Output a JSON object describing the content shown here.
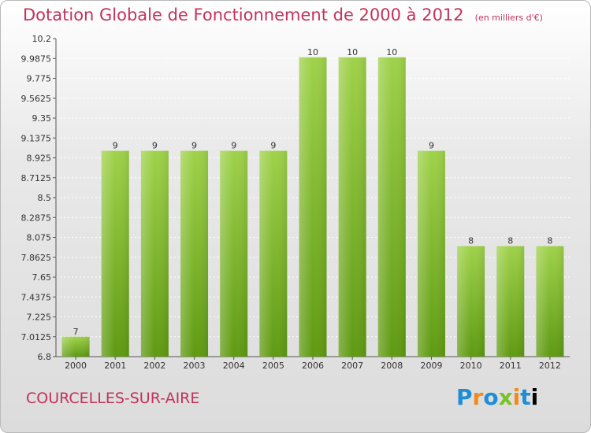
{
  "header": {
    "title": "Dotation Globale de Fonctionnement de 2000 à 2012",
    "unit": "(en milliers d'€)"
  },
  "footer": {
    "commune": "COURCELLES-SUR-AIRE",
    "logo": "Proxiti"
  },
  "colors": {
    "bar_light": "#9fd24a",
    "bar_dark": "#5f9a12",
    "title": "#c4325a"
  },
  "chart_data": {
    "type": "bar",
    "title": "Dotation Globale de Fonctionnement de 2000 à 2012",
    "xlabel": "",
    "ylabel": "",
    "categories": [
      "2000",
      "2001",
      "2002",
      "2003",
      "2004",
      "2005",
      "2006",
      "2007",
      "2008",
      "2009",
      "2010",
      "2011",
      "2012"
    ],
    "values": [
      7,
      9,
      9,
      9,
      9,
      9,
      10,
      10,
      10,
      9,
      8,
      8,
      8
    ],
    "data_labels": [
      "7",
      "9",
      "9",
      "9",
      "9",
      "9",
      "10",
      "10",
      "10",
      "9",
      "8",
      "8",
      "8"
    ],
    "bar_tops": [
      7.0125,
      9.0,
      9.0,
      9.0,
      9.0,
      9.0,
      10.0,
      10.0,
      10.0,
      9.0,
      7.9813,
      7.9813,
      7.9813
    ],
    "ylim": [
      6.8,
      10.2
    ],
    "yticks": [
      6.8,
      7.0125,
      7.225,
      7.4375,
      7.65,
      7.8625,
      8.075,
      8.2875,
      8.5,
      8.7125,
      8.925,
      9.1375,
      9.35,
      9.5625,
      9.775,
      9.9875,
      10.2
    ],
    "ytick_labels": [
      "6.8",
      "7.0125",
      "7.225",
      "7.4375",
      "7.65",
      "7.8625",
      "8.075",
      "8.2875",
      "8.5",
      "8.7125",
      "8.925",
      "9.1375",
      "9.35",
      "9.5625",
      "9.775",
      "9.9875",
      "10.2"
    ],
    "grid": true,
    "legend": "none"
  }
}
